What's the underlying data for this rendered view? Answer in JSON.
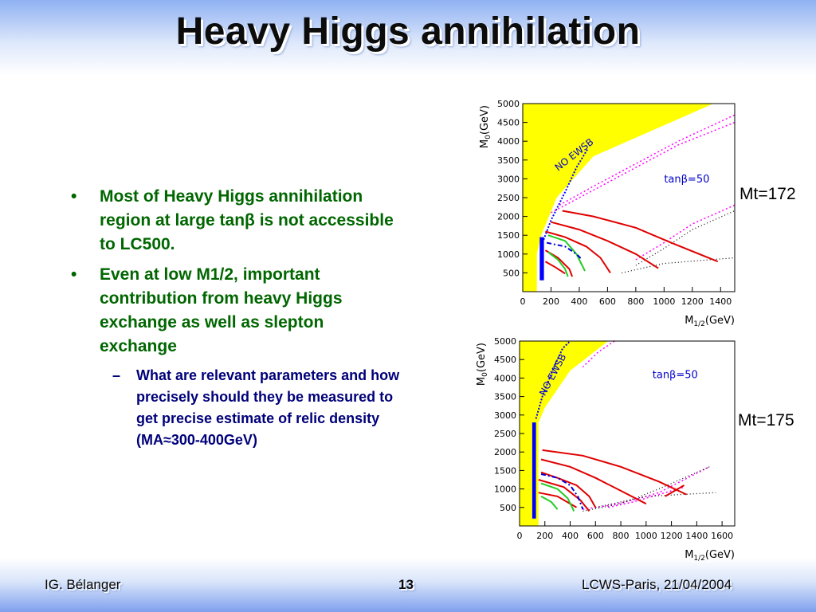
{
  "slide": {
    "title": "Heavy Higgs annihilation",
    "bullets": [
      "Most of Heavy Higgs annihilation region at large tanβ is not accessible to LC500.",
      "Even at low M1/2, important contribution from heavy Higgs exchange as well as slepton exchange"
    ],
    "sub_bullets": [
      "What are relevant parameters and how precisely should they be measured to get precise estimate of relic density (MA≈300-400GeV)"
    ],
    "bullet_mark": "•",
    "sub_bullet_mark": "–",
    "footer": {
      "left": "IG. Bélanger",
      "page": "13",
      "right": "LCWS-Paris, 21/04/2004"
    }
  },
  "chart_data": [
    {
      "type": "line",
      "annotation_mt": "Mt=172",
      "x_label": "M",
      "x_sub": "1/2",
      "x_unit": "(GeV)",
      "y_label": "M",
      "y_sub": "0",
      "y_unit": "(GeV)",
      "xlim": [
        0,
        1500
      ],
      "ylim": [
        0,
        5000
      ],
      "x_ticks": [
        "0",
        "200",
        "400",
        "600",
        "800",
        "1000",
        "1200",
        "1400"
      ],
      "y_ticks": [
        "500",
        "1000",
        "1500",
        "2000",
        "2500",
        "3000",
        "3500",
        "4000",
        "4500",
        "5000"
      ],
      "region_label": "NO EWSB",
      "tanb_label": "tanβ=50",
      "colors": {
        "region": "#ffff00",
        "lc": "#0000ff",
        "red": "#e00000",
        "green": "#22cc22",
        "blue": "#0000dd",
        "magenta": "#ff00ff",
        "black": "#000000"
      }
    },
    {
      "type": "line",
      "annotation_mt": "Mt=175",
      "x_label": "M",
      "x_sub": "1/2",
      "x_unit": "(GeV)",
      "y_label": "M",
      "y_sub": "0",
      "y_unit": "(GeV)",
      "xlim": [
        0,
        1700
      ],
      "ylim": [
        0,
        5000
      ],
      "x_ticks": [
        "0",
        "200",
        "400",
        "600",
        "800",
        "1000",
        "1200",
        "1400",
        "1600"
      ],
      "y_ticks": [
        "500",
        "1000",
        "1500",
        "2000",
        "2500",
        "3000",
        "3500",
        "4000",
        "4500",
        "5000"
      ],
      "region_label": "NO EWSB",
      "tanb_label": "tanβ=50",
      "colors": {
        "region": "#ffff00",
        "lc": "#0000ff",
        "red": "#e00000",
        "green": "#22cc22",
        "blue": "#0000dd",
        "magenta": "#ff00ff",
        "black": "#000000"
      }
    }
  ]
}
